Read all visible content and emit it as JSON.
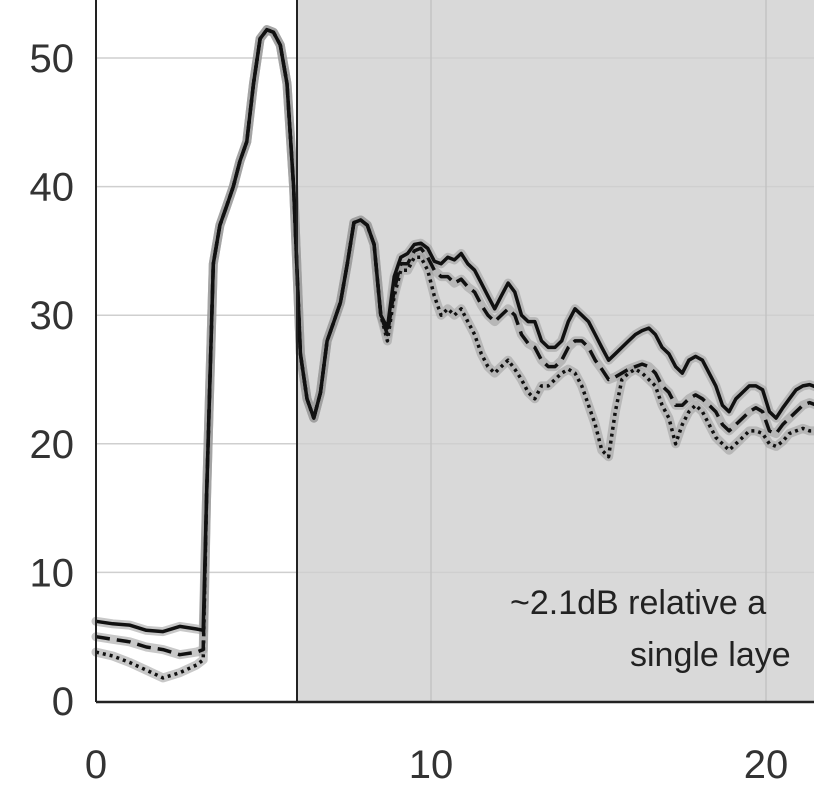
{
  "chart_data": {
    "type": "line",
    "xlim": [
      0,
      21.5
    ],
    "ylim": [
      0,
      54
    ],
    "x_ticks": [
      0,
      10,
      20
    ],
    "y_ticks": [
      0,
      10,
      20,
      30,
      40,
      50
    ],
    "x_tick_labels": [
      "0",
      "10",
      "20"
    ],
    "y_tick_labels": [
      "0",
      "10",
      "20",
      "30",
      "40",
      "50"
    ],
    "grid": true,
    "shaded_region": {
      "x_start": 6,
      "x_end": 21.5,
      "color": "#d9d9d9"
    },
    "annotation": [
      "~2.1dB relative a",
      "single laye"
    ],
    "colors": {
      "line": "#111111",
      "band": "#9a9a9a",
      "shade": "#d9d9d9",
      "grid": "#cfcfcf",
      "axis": "#222222"
    },
    "series": [
      {
        "style": "solid",
        "x": [
          0,
          0.5,
          1,
          1.5,
          2,
          2.5,
          3,
          3.2,
          3.3,
          3.5,
          3.7,
          3.9,
          4.1,
          4.3,
          4.5,
          4.7,
          4.9,
          5.1,
          5.3,
          5.5,
          5.7,
          5.9,
          6.1,
          6.3,
          6.5,
          6.7,
          6.9,
          7.1,
          7.3,
          7.5,
          7.7,
          7.9,
          8.1,
          8.3,
          8.5,
          8.7,
          8.9,
          9.1,
          9.3,
          9.5,
          9.7,
          9.9,
          10.1,
          10.3,
          10.5,
          10.7,
          10.9,
          11.1,
          11.3,
          11.5,
          11.7,
          11.9,
          12.1,
          12.3,
          12.5,
          12.7,
          12.9,
          13.1,
          13.3,
          13.5,
          13.7,
          13.9,
          14.1,
          14.3,
          14.5,
          14.7,
          14.9,
          15.1,
          15.3,
          15.5,
          15.7,
          15.9,
          16.1,
          16.3,
          16.5,
          16.7,
          16.9,
          17.1,
          17.3,
          17.5,
          17.7,
          17.9,
          18.1,
          18.3,
          18.5,
          18.7,
          18.9,
          19.1,
          19.3,
          19.5,
          19.7,
          19.9,
          20.1,
          20.3,
          20.5,
          20.7,
          20.9,
          21.1,
          21.3,
          21.5
        ],
        "y": [
          6.2,
          6.0,
          5.9,
          5.5,
          5.4,
          5.8,
          5.6,
          5.5,
          16,
          34,
          37,
          38.5,
          40,
          42,
          43.5,
          48,
          51.5,
          52.2,
          52,
          51,
          48,
          40,
          27,
          23.5,
          22,
          24,
          28,
          29.5,
          31,
          34,
          37.2,
          37.4,
          37,
          35.5,
          30,
          29,
          33,
          34.5,
          34.8,
          35.5,
          35.6,
          35.2,
          34.2,
          34.0,
          34.5,
          34.3,
          34.8,
          34.0,
          33.5,
          32.5,
          31.5,
          30.5,
          31.5,
          32.5,
          31.8,
          30.0,
          29.5,
          29.5,
          28.0,
          27.5,
          27.5,
          28.0,
          29.5,
          30.5,
          30.0,
          29.5,
          28.5,
          27.5,
          26.5,
          27.0,
          27.5,
          28.0,
          28.5,
          28.8,
          29.0,
          28.5,
          27.5,
          27.0,
          26.0,
          25.5,
          26.5,
          26.8,
          26.5,
          25.5,
          24.5,
          23.0,
          22.5,
          23.5,
          24.0,
          24.5,
          24.5,
          24.2,
          22.5,
          22.0,
          22.8,
          23.5,
          24.2,
          24.5,
          24.6,
          24.4
        ]
      },
      {
        "style": "dashed",
        "x": [
          0,
          0.5,
          1,
          1.5,
          2,
          2.5,
          3,
          3.2,
          3.3,
          3.5,
          3.7,
          3.9,
          4.1,
          4.3,
          4.5,
          4.7,
          4.9,
          5.1,
          5.3,
          5.5,
          5.7,
          5.9,
          6.1,
          6.3,
          6.5,
          6.7,
          6.9,
          7.1,
          7.3,
          7.5,
          7.7,
          7.9,
          8.1,
          8.3,
          8.5,
          8.7,
          8.9,
          9.1,
          9.3,
          9.5,
          9.7,
          9.9,
          10.1,
          10.3,
          10.5,
          10.7,
          10.9,
          11.1,
          11.3,
          11.5,
          11.7,
          11.9,
          12.1,
          12.3,
          12.5,
          12.7,
          12.9,
          13.1,
          13.3,
          13.5,
          13.7,
          13.9,
          14.1,
          14.3,
          14.5,
          14.7,
          14.9,
          15.1,
          15.3,
          15.5,
          15.7,
          15.9,
          16.1,
          16.3,
          16.5,
          16.7,
          16.9,
          17.1,
          17.3,
          17.5,
          17.7,
          17.9,
          18.1,
          18.3,
          18.5,
          18.7,
          18.9,
          19.1,
          19.3,
          19.5,
          19.7,
          19.9,
          20.1,
          20.3,
          20.5,
          20.7,
          20.9,
          21.1,
          21.3,
          21.5
        ],
        "y": [
          5.0,
          4.8,
          4.6,
          4.2,
          4.0,
          3.6,
          3.8,
          4.0,
          16,
          34,
          37,
          38.5,
          40,
          42,
          43.5,
          48,
          51.5,
          52.2,
          52,
          51,
          48,
          40,
          27,
          23.5,
          22,
          24,
          28,
          29.5,
          31,
          34,
          37.2,
          37.4,
          37,
          35.5,
          30,
          28.5,
          32,
          34.0,
          34.0,
          35.0,
          35.2,
          34.5,
          33.5,
          33.0,
          33.0,
          32.5,
          32.8,
          32.2,
          31.8,
          30.8,
          30.0,
          29.5,
          30.0,
          30.5,
          30.0,
          28.5,
          27.8,
          27.5,
          26.5,
          26.0,
          26.0,
          26.5,
          27.5,
          28.0,
          28.0,
          27.5,
          26.5,
          25.8,
          25.0,
          25.2,
          25.5,
          25.8,
          26.0,
          26.2,
          26.0,
          25.5,
          24.5,
          24.0,
          23.0,
          23.0,
          23.5,
          23.8,
          23.5,
          23.0,
          22.5,
          21.5,
          21.0,
          21.5,
          22.0,
          22.5,
          22.8,
          22.5,
          21.0,
          20.8,
          21.5,
          22.0,
          22.5,
          23.0,
          23.2,
          23.0
        ]
      },
      {
        "style": "dotted",
        "x": [
          0,
          0.5,
          1,
          1.5,
          2,
          2.5,
          3,
          3.2,
          3.3,
          3.5,
          3.7,
          3.9,
          4.1,
          4.3,
          4.5,
          4.7,
          4.9,
          5.1,
          5.3,
          5.5,
          5.7,
          5.9,
          6.1,
          6.3,
          6.5,
          6.7,
          6.9,
          7.1,
          7.3,
          7.5,
          7.7,
          7.9,
          8.1,
          8.3,
          8.5,
          8.7,
          8.9,
          9.1,
          9.3,
          9.5,
          9.7,
          9.9,
          10.1,
          10.3,
          10.5,
          10.7,
          10.9,
          11.1,
          11.3,
          11.5,
          11.7,
          11.9,
          12.1,
          12.3,
          12.5,
          12.7,
          12.9,
          13.1,
          13.3,
          13.5,
          13.7,
          13.9,
          14.1,
          14.3,
          14.5,
          14.7,
          14.9,
          15.1,
          15.3,
          15.5,
          15.7,
          15.9,
          16.1,
          16.3,
          16.5,
          16.7,
          16.9,
          17.1,
          17.3,
          17.5,
          17.7,
          17.9,
          18.1,
          18.3,
          18.5,
          18.7,
          18.9,
          19.1,
          19.3,
          19.5,
          19.7,
          19.9,
          20.1,
          20.3,
          20.5,
          20.7,
          20.9,
          21.1,
          21.3,
          21.5
        ],
        "y": [
          3.8,
          3.5,
          3.0,
          2.4,
          1.8,
          2.2,
          2.8,
          3.2,
          16,
          34,
          37,
          38.5,
          40,
          42,
          43.5,
          48,
          51.5,
          52.2,
          52,
          51,
          48,
          40,
          27,
          23.5,
          22,
          24,
          28,
          29.5,
          31,
          34,
          37.2,
          37.4,
          37,
          35.5,
          30,
          28.0,
          31.5,
          33.5,
          33.5,
          34.5,
          34.5,
          33.5,
          31.5,
          30.0,
          30.5,
          30.0,
          30.5,
          29.5,
          28.5,
          27.0,
          26.0,
          25.5,
          26.0,
          26.5,
          25.8,
          25.0,
          24.0,
          23.5,
          24.5,
          24.5,
          25.0,
          25.5,
          25.8,
          25.5,
          24.5,
          23.0,
          21.5,
          19.5,
          19.0,
          22.5,
          25.0,
          25.5,
          25.8,
          25.5,
          25.0,
          24.5,
          23.0,
          22.0,
          20.0,
          21.5,
          22.5,
          23.0,
          22.5,
          21.5,
          20.5,
          20.0,
          19.5,
          20.0,
          20.5,
          21.0,
          21.0,
          20.8,
          20.0,
          19.8,
          20.2,
          20.8,
          21.0,
          21.2,
          21.0,
          21.0
        ]
      }
    ]
  }
}
